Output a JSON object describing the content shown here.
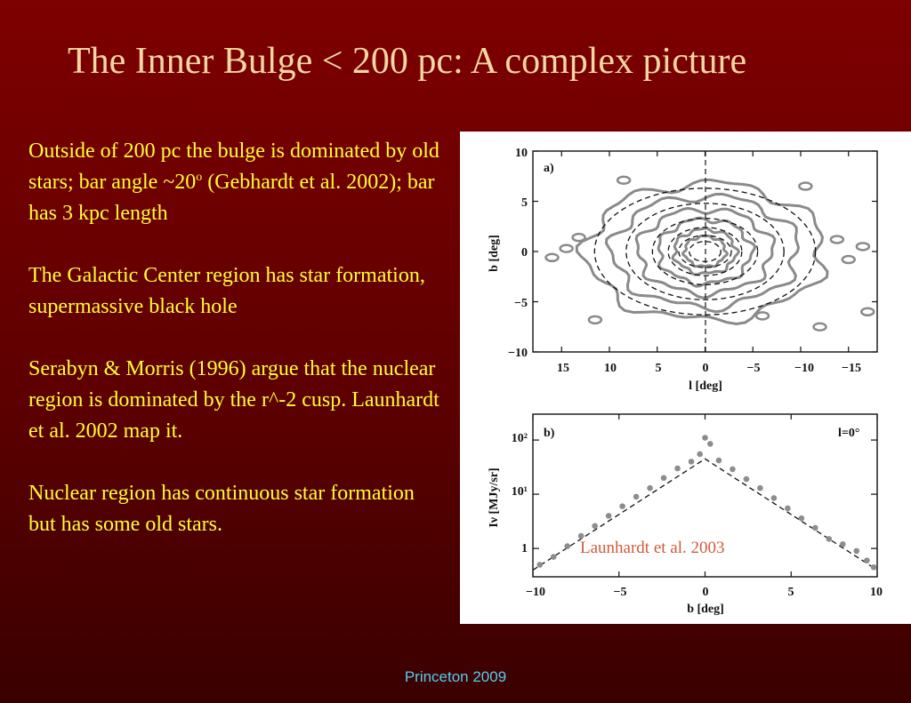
{
  "slide": {
    "title": "The Inner Bulge < 200 pc: A complex picture",
    "footer": "Princeton 2009"
  },
  "bullets": {
    "b1": {
      "pre": "Outside of 200 pc the bulge is dominated by old stars; bar angle ~20",
      "sup": "o",
      "post": " (Gebhardt et al. 2002); bar has 3 kpc length"
    },
    "b2": "The Galactic Center region has star formation, supermassive black hole",
    "b3": "Serabyn & Morris (1996) argue that the nuclear region is dominated by the r^-2 cusp.    Launhardt et al. 2002 map it.",
    "b4": "Nuclear region has continuous star formation but has some old stars."
  },
  "figure": {
    "credit": "Launhardt et al. 2003",
    "panel_a": {
      "tag": "a)",
      "xlabel": "l [deg]",
      "ylabel": "b [deg]",
      "xticks": [
        "15",
        "10",
        "5",
        "0",
        "−5",
        "−10",
        "−15"
      ],
      "yticks": [
        "10",
        "5",
        "0",
        "−5",
        "−10"
      ]
    },
    "panel_b": {
      "tag": "b)",
      "note": "l=0°",
      "xlabel": "b [deg]",
      "ylabel": "Iν [MJy/sr]",
      "xticks": [
        "−10",
        "−5",
        "0",
        "5",
        "10"
      ],
      "yticks": [
        "10²",
        "10¹",
        "1"
      ]
    }
  },
  "chart_data": [
    {
      "type": "contour",
      "xlabel": "l [deg]",
      "ylabel": "b [deg]",
      "xlim": [
        18,
        -18
      ],
      "ylim": [
        -10,
        10
      ],
      "xticks": [
        15,
        10,
        5,
        0,
        -5,
        -10,
        -15
      ],
      "yticks": [
        -10,
        -5,
        0,
        5,
        10
      ],
      "model_contours_semi_axes_deg": [
        [
          1.5,
          1.0
        ],
        [
          2.5,
          1.6
        ],
        [
          3.5,
          2.4
        ],
        [
          5.0,
          3.3
        ],
        [
          7.5,
          4.8
        ],
        [
          10.5,
          6.3
        ]
      ],
      "observed_contours_semi_axes_deg": [
        [
          2.0,
          1.5
        ],
        [
          3.0,
          2.2
        ],
        [
          4.5,
          3.2
        ],
        [
          6.5,
          4.2
        ],
        [
          9.0,
          5.5
        ],
        [
          11.5,
          6.8
        ]
      ]
    },
    {
      "type": "scatter",
      "xlabel": "b [deg]",
      "ylabel": "Iν [MJy/sr]",
      "xlim": [
        -10,
        10
      ],
      "ylim": [
        0.3,
        300
      ],
      "yscale": "log",
      "model_line": {
        "x": [
          -10,
          0,
          10
        ],
        "y": [
          0.4,
          45,
          0.4
        ]
      },
      "points": {
        "x": [
          -9.6,
          -8.8,
          -8.0,
          -7.2,
          -6.4,
          -5.6,
          -4.8,
          -4.0,
          -3.2,
          -2.4,
          -1.6,
          -0.8,
          -0.3,
          0.0,
          0.3,
          0.8,
          1.6,
          2.4,
          3.2,
          4.0,
          4.8,
          5.6,
          6.4,
          7.2,
          8.0,
          8.8,
          9.4,
          9.8
        ],
        "y": [
          0.5,
          0.7,
          1.1,
          1.7,
          2.6,
          4.0,
          6.0,
          9.0,
          13,
          20,
          30,
          40,
          55,
          110,
          85,
          42,
          29,
          19,
          13,
          8.5,
          5.5,
          3.6,
          2.4,
          1.5,
          1.2,
          0.9,
          0.6,
          0.45
        ]
      }
    }
  ]
}
